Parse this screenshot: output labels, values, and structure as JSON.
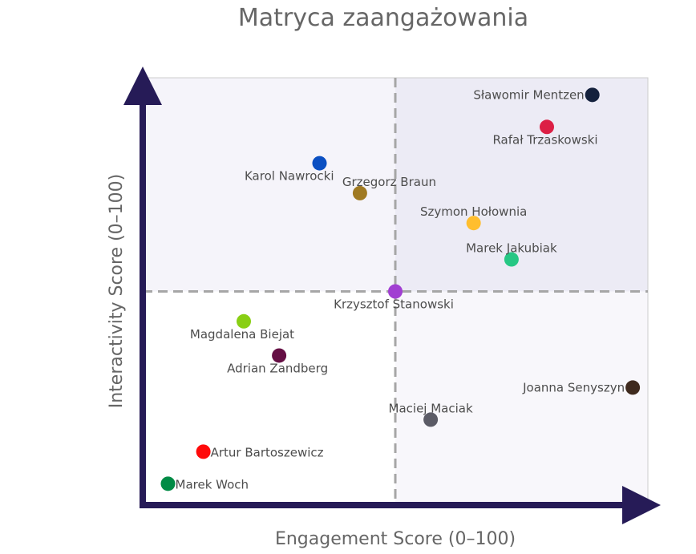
{
  "chart_data": {
    "type": "scatter",
    "title": "Matryca zaangażowania",
    "xlabel": "Engagement Score (0–100)",
    "ylabel": "Interactivity Score (0–100)",
    "xlim": [
      0,
      100
    ],
    "ylim": [
      0,
      100
    ],
    "grid": false,
    "quadrant_split": {
      "x": 50,
      "y": 50
    },
    "quadrant_colors": {
      "top_left": "#f5f4fa",
      "top_right": "#ecebf5",
      "bottom_left": "#ffffff",
      "bottom_right": "#f8f7fb"
    },
    "axis_color": "#261b57",
    "divider_color": "#a6a6a6",
    "points": [
      {
        "name": "Sławomir Mentzen",
        "x": 89,
        "y": 96,
        "color": "#14213d",
        "label_pos": "left"
      },
      {
        "name": "Rafał Trzaskowski",
        "x": 80,
        "y": 88.5,
        "color": "#dc1f45",
        "label_pos": "below"
      },
      {
        "name": "Karol Nawrocki",
        "x": 35,
        "y": 80,
        "color": "#0a4fc2",
        "label_pos": "below-left"
      },
      {
        "name": "Grzegorz Braun",
        "x": 43,
        "y": 73,
        "color": "#a07a22",
        "label_pos": "above-right"
      },
      {
        "name": "Szymon Hołownia",
        "x": 65.5,
        "y": 66,
        "color": "#ffbe2e",
        "label_pos": "above"
      },
      {
        "name": "Marek Jakubiak",
        "x": 73,
        "y": 57.5,
        "color": "#26c784",
        "label_pos": "above"
      },
      {
        "name": "Krzysztof Stanowski",
        "x": 50,
        "y": 50,
        "color": "#a13fd2",
        "label_pos": "below"
      },
      {
        "name": "Magdalena Biejat",
        "x": 20,
        "y": 43,
        "color": "#89cf14",
        "label_pos": "below"
      },
      {
        "name": "Adrian Zandberg",
        "x": 27,
        "y": 35,
        "color": "#650f44",
        "label_pos": "below"
      },
      {
        "name": "Joanna Senyszyn",
        "x": 97,
        "y": 27.5,
        "color": "#3f2a1e",
        "label_pos": "left"
      },
      {
        "name": "Maciej Maciak",
        "x": 57,
        "y": 20,
        "color": "#5b5b66",
        "label_pos": "above"
      },
      {
        "name": "Artur Bartoszewicz",
        "x": 12,
        "y": 12.5,
        "color": "#ff0a0a",
        "label_pos": "right"
      },
      {
        "name": "Marek Woch",
        "x": 5,
        "y": 5,
        "color": "#008b45",
        "label_pos": "right"
      }
    ]
  }
}
